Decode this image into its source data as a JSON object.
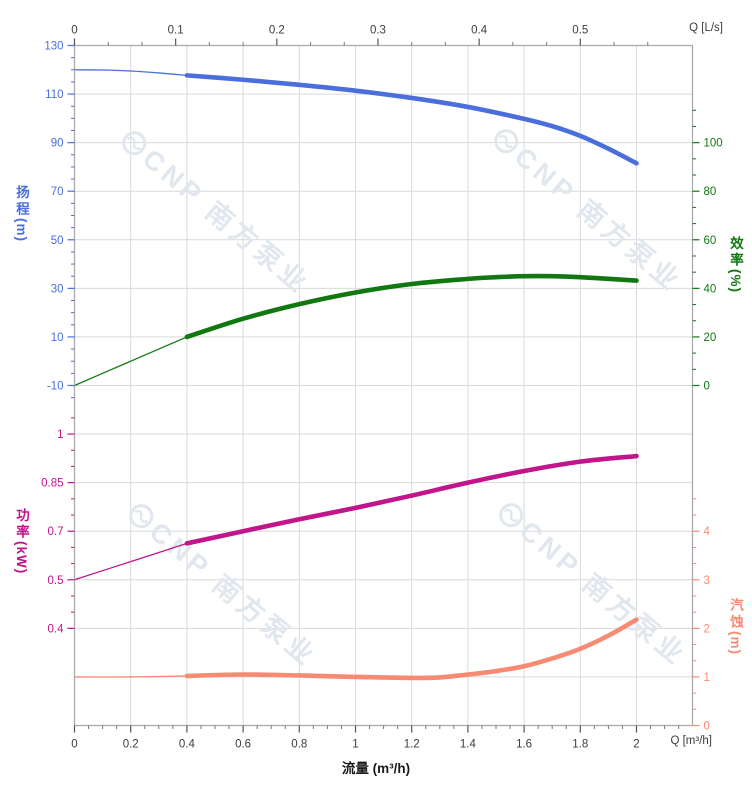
{
  "chart_data": {
    "type": "line",
    "title": "",
    "watermark": {
      "text": "CNP 南方泵业",
      "color": "#e1e7ee"
    },
    "x_axis_bottom": {
      "title": "流量 (m³/h)",
      "corner_label": "Q [m³/h]",
      "unit": "m³/h",
      "min": 0,
      "max": 2.2,
      "ticks": [
        0,
        0.2,
        0.4,
        0.6,
        0.8,
        1,
        1.2,
        1.4,
        1.6,
        1.8,
        2
      ],
      "tick_labels": [
        "0",
        "0.2",
        "0.4",
        "0.6",
        "0.8",
        "1",
        "1.2",
        "1.4",
        "1.6",
        "1.8",
        "2"
      ],
      "color": "#3c3c3c"
    },
    "x_axis_top": {
      "corner_label": "Q [L/s]",
      "unit": "L/s",
      "ticks": [
        0,
        0.1,
        0.2,
        0.3,
        0.4,
        0.5
      ],
      "tick_labels": [
        "0",
        "0.1",
        "0.2",
        "0.3",
        "0.4",
        "0.5"
      ],
      "m3h_per_unit": 3.6,
      "color": "#3c3c3c"
    },
    "y_axes": [
      {
        "id": "head",
        "title": "扬程",
        "unit": "(m)",
        "side": "left",
        "color": "#4a6fdc",
        "ticks": [
          130,
          110,
          90,
          70,
          50,
          30,
          10,
          -10
        ],
        "tick_labels": [
          "130",
          "110",
          "90",
          "70",
          "50",
          "30",
          "10",
          "-10"
        ]
      },
      {
        "id": "eff",
        "title": "效率",
        "unit": "(%)",
        "side": "right",
        "color": "#117811",
        "ticks": [
          100,
          80,
          60,
          40,
          20,
          0
        ],
        "tick_labels": [
          "100",
          "80",
          "60",
          "40",
          "20",
          "0"
        ]
      },
      {
        "id": "power",
        "title": "功率",
        "unit": "(kW)",
        "side": "left",
        "color": "#c2158c",
        "ticks": [
          1,
          0.85,
          0.7,
          0.5,
          0.4
        ],
        "tick_labels": [
          "1",
          "0.85",
          "0.7",
          "0.5",
          "0.4"
        ]
      },
      {
        "id": "npsh",
        "title": "汽蚀",
        "unit": "(m)",
        "side": "right",
        "color": "#f78a72",
        "ticks": [
          4,
          3,
          2,
          1,
          0
        ],
        "tick_labels": [
          "4",
          "3",
          "2",
          "1",
          "0"
        ]
      }
    ],
    "series": [
      {
        "name": "head-curve",
        "axis": "head",
        "color": "#4a6fdc",
        "duty_start": 0.4,
        "points": [
          [
            0,
            120
          ],
          [
            0.1,
            119.9
          ],
          [
            0.2,
            119.5
          ],
          [
            0.3,
            118.7
          ],
          [
            0.4,
            117.7
          ],
          [
            0.6,
            115.9
          ],
          [
            0.8,
            113.8
          ],
          [
            1.0,
            111.4
          ],
          [
            1.2,
            108.4
          ],
          [
            1.4,
            104.7
          ],
          [
            1.6,
            99.8
          ],
          [
            1.7,
            96.8
          ],
          [
            1.8,
            92.8
          ],
          [
            1.9,
            87.5
          ],
          [
            2.0,
            81.5
          ]
        ]
      },
      {
        "name": "efficiency-curve",
        "axis": "eff",
        "color": "#117811",
        "duty_start": 0.4,
        "points": [
          [
            0,
            0
          ],
          [
            0.2,
            10
          ],
          [
            0.4,
            20
          ],
          [
            0.6,
            27.5
          ],
          [
            0.8,
            33.5
          ],
          [
            1.0,
            38.3
          ],
          [
            1.2,
            41.8
          ],
          [
            1.4,
            43.9
          ],
          [
            1.5,
            44.6
          ],
          [
            1.6,
            45.0
          ],
          [
            1.7,
            45.0
          ],
          [
            1.8,
            44.6
          ],
          [
            2.0,
            43.2
          ]
        ]
      },
      {
        "name": "power-curve",
        "axis": "power",
        "color": "#c2158c",
        "duty_start": 0.4,
        "points": [
          [
            0,
            0.5
          ],
          [
            0.2,
            0.575
          ],
          [
            0.4,
            0.65
          ],
          [
            0.6,
            0.7
          ],
          [
            0.8,
            0.737
          ],
          [
            1.0,
            0.772
          ],
          [
            1.2,
            0.81
          ],
          [
            1.4,
            0.85
          ],
          [
            1.6,
            0.886
          ],
          [
            1.8,
            0.915
          ],
          [
            2.0,
            0.932
          ]
        ]
      },
      {
        "name": "npsh-curve",
        "axis": "npsh",
        "color": "#f78a72",
        "duty_start": 0.4,
        "points": [
          [
            0,
            1.0
          ],
          [
            0.2,
            1.0
          ],
          [
            0.4,
            1.02
          ],
          [
            0.6,
            1.05
          ],
          [
            0.8,
            1.03
          ],
          [
            1.0,
            1.0
          ],
          [
            1.2,
            0.98
          ],
          [
            1.3,
            0.99
          ],
          [
            1.4,
            1.05
          ],
          [
            1.5,
            1.12
          ],
          [
            1.6,
            1.22
          ],
          [
            1.7,
            1.38
          ],
          [
            1.8,
            1.58
          ],
          [
            1.9,
            1.85
          ],
          [
            2.0,
            2.18
          ]
        ]
      }
    ],
    "grid_color": "#d9d9d9",
    "border_color": "#ababab"
  }
}
